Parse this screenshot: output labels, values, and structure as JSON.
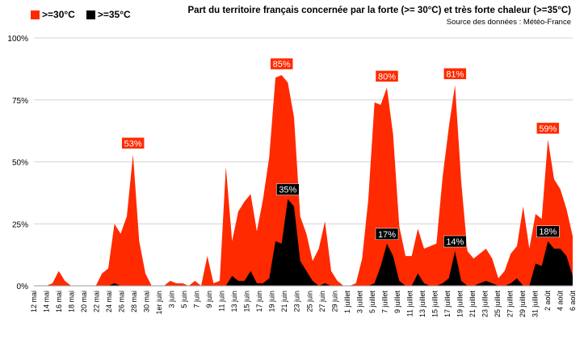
{
  "legend": [
    {
      "label": ">=30°C",
      "color": "#ff2a00"
    },
    {
      "label": ">=35°C",
      "color": "#000000"
    }
  ],
  "title": "Part du territoire français concernée par la forte (>= 30°C) et très forte chaleur (>=35°C)",
  "subtitle": "Source des données : Météo-France",
  "chart_data": {
    "type": "area",
    "title": "Part du territoire français concernée par la forte (>= 30°C) et très forte chaleur (>=35°C)",
    "ylim": [
      0,
      100
    ],
    "yticks": [
      "0%",
      "25%",
      "50%",
      "75%",
      "100%"
    ],
    "ytick_values": [
      0,
      25,
      50,
      75,
      100
    ],
    "grid": true,
    "legend_position": "top-left",
    "xtick_labels": [
      "12 mai",
      "14 mai",
      "16 mai",
      "18 mai",
      "20 mai",
      "22 mai",
      "24 mai",
      "26 mai",
      "28 mai",
      "30 mai",
      "1er juin",
      "3 juin",
      "5 juin",
      "7 juin",
      "9 juin",
      "11 juin",
      "13 juin",
      "15 juin",
      "17 juin",
      "19 juin",
      "21 juin",
      "23 juin",
      "25 juin",
      "27 juin",
      "29 juin",
      "1 juillet",
      "3 juillet",
      "5 juillet",
      "7 juillet",
      "9 juillet",
      "11 juillet",
      "13 juillet",
      "15 juillet",
      "17 juillet",
      "19 juillet",
      "21 juillet",
      "23 juillet",
      "25 juillet",
      "27 juillet",
      "29 juillet",
      "31 juillet",
      "2 août",
      "4 août",
      "6 août"
    ],
    "series": [
      {
        "name": ">=30°C",
        "color": "#ff2a00",
        "values": [
          0,
          0,
          0,
          1,
          6,
          2,
          0,
          0,
          0,
          0,
          0,
          5,
          7,
          25,
          21,
          28,
          53,
          18,
          5,
          0,
          0,
          0,
          2,
          1,
          1,
          0,
          2,
          0,
          12,
          1,
          2,
          48,
          18,
          30,
          34,
          37,
          22,
          35,
          52,
          84,
          85,
          82,
          68,
          28,
          21,
          10,
          15,
          26,
          6,
          2,
          0,
          0,
          1,
          11,
          35,
          74,
          73,
          80,
          61,
          24,
          12,
          12,
          23,
          15,
          16,
          17,
          44,
          64,
          81,
          42,
          14,
          11,
          13,
          15,
          11,
          3,
          6,
          13,
          16,
          32,
          15,
          29,
          27,
          59,
          43,
          39,
          31,
          20
        ]
      },
      {
        "name": ">=35°C",
        "color": "#000000",
        "values": [
          0,
          0,
          0,
          0,
          0,
          0,
          0,
          0,
          0,
          0,
          0,
          0,
          0,
          1,
          0,
          0,
          0,
          0,
          0,
          0,
          0,
          0,
          0,
          0,
          0,
          0,
          0,
          0,
          0,
          0,
          0,
          0,
          4,
          2,
          2,
          6,
          1,
          1,
          3,
          18,
          17,
          35,
          32,
          10,
          6,
          2,
          0,
          1,
          0,
          0,
          0,
          0,
          0,
          0,
          0,
          1,
          8,
          17,
          12,
          2,
          0,
          0,
          5,
          1,
          0,
          0,
          1,
          3,
          14,
          2,
          0,
          0,
          1,
          2,
          1,
          0,
          0,
          1,
          3,
          0,
          0,
          9,
          8,
          18,
          15,
          15,
          12,
          4
        ]
      }
    ],
    "annotations": [
      {
        "label": "53%",
        "index": 16,
        "value": 53
      },
      {
        "label": "85%",
        "index": 40,
        "value": 85
      },
      {
        "label": "80%",
        "index": 57,
        "value": 80
      },
      {
        "label": "81%",
        "index": 68,
        "value": 81
      },
      {
        "label": "59%",
        "index": 83,
        "value": 59
      },
      {
        "label": "35%",
        "index": 41,
        "value": 35
      },
      {
        "label": "17%",
        "index": 57,
        "value": 17
      },
      {
        "label": "14%",
        "index": 68,
        "value": 14
      },
      {
        "label": "18%",
        "index": 83,
        "value": 18
      }
    ]
  }
}
